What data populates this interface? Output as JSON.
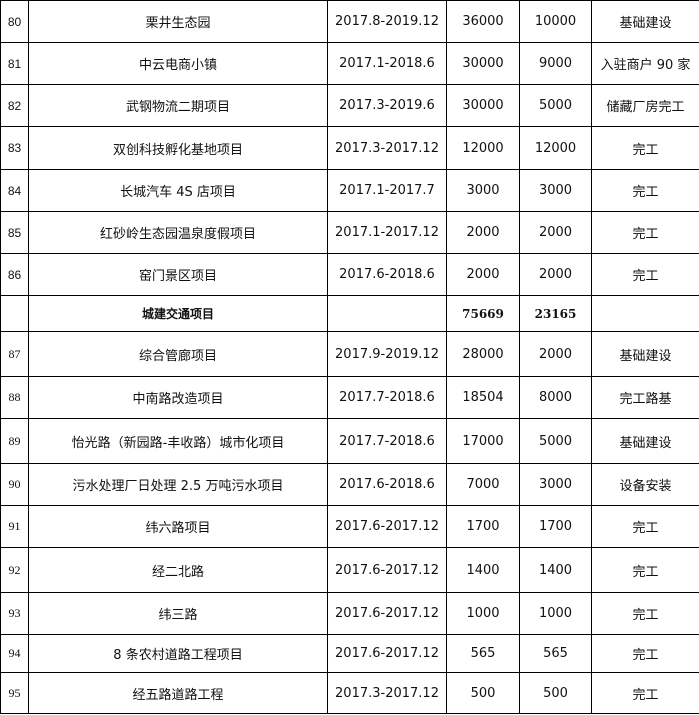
{
  "rows": [
    {
      "no": "80",
      "name": "栗井生态园",
      "period": "2017.8-2019.12",
      "total": "36000",
      "annual": "10000",
      "progress": "基础建设"
    },
    {
      "no": "81",
      "name": "中云电商小镇",
      "period": "2017.1-2018.6",
      "total": "30000",
      "annual": "9000",
      "progress": "入驻商户 90 家"
    },
    {
      "no": "82",
      "name": "武钢物流二期项目",
      "period": "2017.3-2019.6",
      "total": "30000",
      "annual": "5000",
      "progress": "储藏厂房完工"
    },
    {
      "no": "83",
      "name": "双创科技孵化基地项目",
      "period": "2017.3-2017.12",
      "total": "12000",
      "annual": "12000",
      "progress": "完工"
    },
    {
      "no": "84",
      "name": "长城汽车 4S 店项目",
      "period": "2017.1-2017.7",
      "total": "3000",
      "annual": "3000",
      "progress": "完工"
    },
    {
      "no": "85",
      "name": "红砂岭生态园温泉度假项目",
      "period": "2017.1-2017.12",
      "total": "2000",
      "annual": "2000",
      "progress": "完工"
    },
    {
      "no": "86",
      "name": "窑门景区项目",
      "period": "2017.6-2018.6",
      "total": "2000",
      "annual": "2000",
      "progress": "完工"
    },
    {
      "no": "",
      "name": "城建交通项目",
      "period": "",
      "total": "75669",
      "annual": "23165",
      "progress": "",
      "section": true
    },
    {
      "no": "87",
      "name": "综合管廊项目",
      "period": "2017.9-2019.12",
      "total": "28000",
      "annual": "2000",
      "progress": "基础建设"
    },
    {
      "no": "88",
      "name": "中南路改造项目",
      "period": "2017.7-2018.6",
      "total": "18504",
      "annual": "8000",
      "progress": "完工路基"
    },
    {
      "no": "89",
      "name": "怡光路（新园路-丰收路）城市化项目",
      "period": "2017.7-2018.6",
      "total": "17000",
      "annual": "5000",
      "progress": "基础建设"
    },
    {
      "no": "90",
      "name": "污水处理厂日处理 2.5 万吨污水项目",
      "period": "2017.6-2018.6",
      "total": "7000",
      "annual": "3000",
      "progress": "设备安装"
    },
    {
      "no": "91",
      "name": "纬六路项目",
      "period": "2017.6-2017.12",
      "total": "1700",
      "annual": "1700",
      "progress": "完工"
    },
    {
      "no": "92",
      "name": "经二北路",
      "period": "2017.6-2017.12",
      "total": "1400",
      "annual": "1400",
      "progress": "完工"
    },
    {
      "no": "93",
      "name": "纬三路",
      "period": "2017.6-2017.12",
      "total": "1000",
      "annual": "1000",
      "progress": "完工"
    },
    {
      "no": "94",
      "name": "8 条农村道路工程项目",
      "period": "2017.6-2017.12",
      "total": "565",
      "annual": "565",
      "progress": "完工"
    },
    {
      "no": "95",
      "name": "经五路道路工程",
      "period": "2017.3-2017.12",
      "total": "500",
      "annual": "500",
      "progress": "完工"
    }
  ]
}
